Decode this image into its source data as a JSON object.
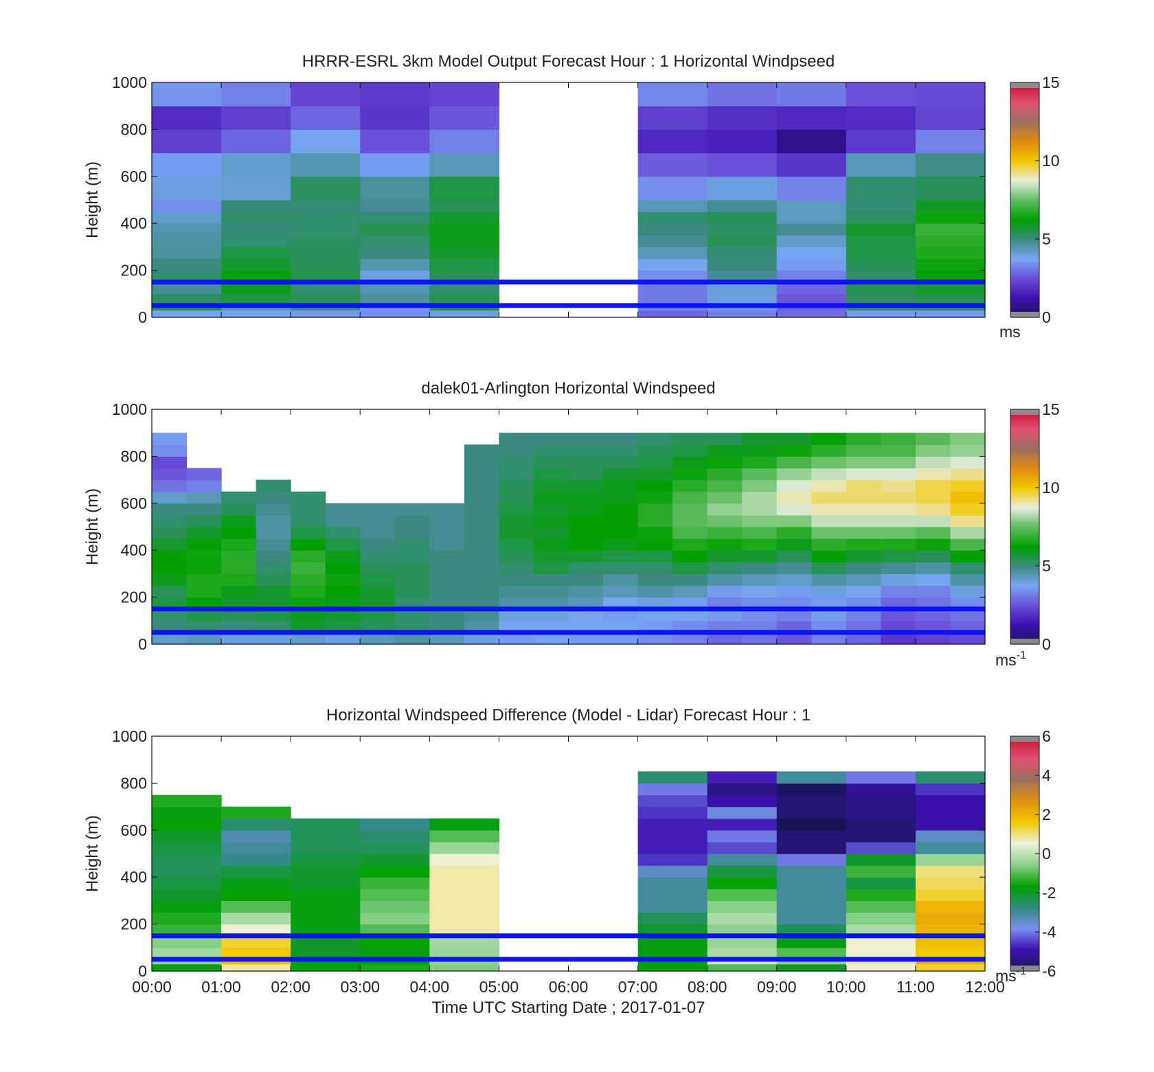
{
  "figure": {
    "xlabel": "Time UTC  Starting Date ; 2017-01-07",
    "xticks": [
      "00:00",
      "01:00",
      "02:00",
      "03:00",
      "04:00",
      "05:00",
      "06:00",
      "07:00",
      "08:00",
      "09:00",
      "10:00",
      "11:00",
      "12:00"
    ]
  },
  "colormap": {
    "windspeed": [
      "#161650",
      "#3c10b0",
      "#6a4fd8",
      "#78a6f5",
      "#3a8a80",
      "#00a000",
      "#60bc60",
      "#e8eee0",
      "#f2c800",
      "#e08a10",
      "#9c7060",
      "#e05070",
      "#c81030"
    ],
    "difference": [
      "#161650",
      "#3c10b0",
      "#7a8ef0",
      "#2f8a7e",
      "#00a000",
      "#8cd08c",
      "#eef2dc",
      "#f2c800",
      "#e09010",
      "#9c7060",
      "#e05070",
      "#c81030"
    ],
    "clip_color": "#8c8c8c",
    "reference_line_color": "#0a14f0"
  },
  "chart_data": [
    {
      "type": "heatmap",
      "title": "HRRR-ESRL 3km Model Output   Forecast Hour : 1 Horizontal Windpseed",
      "ylabel": "Height (m)",
      "xlim": [
        0,
        12
      ],
      "ylim": [
        0,
        1000
      ],
      "yticks": [
        "0",
        "200",
        "400",
        "600",
        "800",
        "1000"
      ],
      "colorbar": {
        "range": [
          0,
          15
        ],
        "ticks": [
          "0",
          "5",
          "10",
          "15"
        ],
        "unit": "ms"
      },
      "hline_heights_m": [
        50,
        150
      ],
      "x_bins_hours": [
        0,
        1,
        2,
        3,
        4,
        5,
        6,
        7,
        8,
        9,
        10,
        11,
        12
      ],
      "y_bins_m": [
        0,
        30,
        60,
        100,
        150,
        200,
        250,
        300,
        350,
        400,
        450,
        500,
        600,
        700,
        800,
        900,
        1000
      ],
      "values": [
        [
          3.8,
          5.4,
          5.3,
          4.8,
          5.2,
          5.0,
          4.7,
          4.6,
          4.5,
          4.2,
          3.4,
          4.0,
          3.6,
          2.2,
          1.8,
          3.5
        ],
        [
          3.8,
          4.4,
          5.6,
          6.0,
          6.3,
          5.8,
          5.6,
          5.2,
          5.1,
          5.2,
          5.1,
          4.1,
          4.2,
          2.8,
          2.2,
          3.2
        ],
        [
          3.6,
          4.9,
          5.4,
          5.2,
          5.5,
          5.4,
          5.4,
          5.3,
          5.2,
          5.2,
          5.1,
          5.3,
          4.5,
          3.8,
          2.8,
          2.3
        ],
        [
          3.4,
          3.6,
          4.7,
          4.5,
          4.0,
          4.5,
          5.0,
          5.2,
          5.5,
          5.1,
          4.8,
          4.7,
          3.6,
          2.5,
          2.0,
          2.1
        ],
        [
          4.0,
          5.4,
          5.5,
          5.2,
          5.4,
          5.6,
          5.8,
          6.0,
          6.0,
          5.8,
          5.4,
          5.6,
          4.4,
          3.2,
          2.6,
          2.3
        ],
        null,
        null,
        [
          2.8,
          3.2,
          3.1,
          3.1,
          3.4,
          3.8,
          4.4,
          4.8,
          5.0,
          5.2,
          4.4,
          3.4,
          2.7,
          1.7,
          2.2,
          3.3
        ],
        [
          3.2,
          3.5,
          4.0,
          4.1,
          4.8,
          5.0,
          5.1,
          5.4,
          5.3,
          5.4,
          4.8,
          4.0,
          2.5,
          1.6,
          1.9,
          3.0
        ],
        [
          2.9,
          2.7,
          2.6,
          2.8,
          3.2,
          3.6,
          3.8,
          4.2,
          4.8,
          4.3,
          4.3,
          3.2,
          2.0,
          0.8,
          1.7,
          3.1
        ],
        [
          3.6,
          5.2,
          5.3,
          5.5,
          5.2,
          5.4,
          5.6,
          5.6,
          5.8,
          5.3,
          5.1,
          5.2,
          4.4,
          2.1,
          1.8,
          2.5
        ],
        [
          3.6,
          5.2,
          5.5,
          5.8,
          6.2,
          6.4,
          6.6,
          6.8,
          7.0,
          6.4,
          5.9,
          5.4,
          4.9,
          3.2,
          2.3,
          2.4
        ]
      ]
    },
    {
      "type": "heatmap",
      "title": "dalek01-Arlington  Horizontal Windspeed",
      "ylabel": "Height (m)",
      "xlim": [
        0,
        12
      ],
      "ylim": [
        0,
        1000
      ],
      "yticks": [
        "0",
        "200",
        "400",
        "600",
        "800",
        "1000"
      ],
      "colorbar": {
        "range": [
          0,
          15
        ],
        "ticks": [
          "0",
          "5",
          "10",
          "15"
        ],
        "unit": "ms",
        "unit_superscript": "-1"
      },
      "hline_heights_m": [
        50,
        150
      ],
      "x_bins_hours": [
        0,
        0.5,
        1,
        1.5,
        2,
        2.5,
        3,
        3.5,
        4,
        4.5,
        5,
        5.5,
        6,
        6.5,
        7,
        7.5,
        8,
        8.5,
        9,
        9.5,
        10,
        10.5,
        11,
        11.5,
        12
      ],
      "y_bins_m": [
        0,
        50,
        100,
        150,
        200,
        250,
        300,
        350,
        400,
        450,
        500,
        550,
        600,
        650,
        700,
        750,
        800,
        850,
        900
      ],
      "values": [
        [
          4.2,
          5.0,
          5.2,
          5.6,
          5.4,
          6.0,
          6.2,
          6.2,
          5.8,
          5.4,
          5.2,
          5.0,
          4.2,
          3.0,
          2.6,
          2.4,
          3.4,
          3.6
        ],
        [
          4.4,
          5.2,
          5.6,
          6.2,
          6.6,
          6.6,
          6.4,
          6.4,
          6.2,
          5.8,
          5.4,
          5.0,
          4.4,
          3.2,
          2.8,
          null,
          null,
          null
        ],
        [
          4.0,
          5.0,
          5.4,
          5.8,
          6.0,
          6.6,
          6.8,
          6.8,
          6.6,
          6.2,
          6.0,
          5.4,
          5.2,
          null,
          null,
          null,
          null,
          null
        ],
        [
          4.0,
          5.2,
          5.6,
          5.8,
          5.8,
          5.4,
          5.2,
          5.0,
          4.8,
          4.6,
          4.6,
          4.8,
          5.0,
          5.2,
          null,
          null,
          null,
          null
        ],
        [
          4.2,
          5.8,
          6.0,
          6.4,
          6.6,
          6.8,
          7.0,
          6.8,
          6.2,
          5.6,
          5.2,
          5.2,
          5.2,
          null,
          null,
          null,
          null,
          null
        ],
        [
          4.0,
          5.6,
          5.8,
          6.0,
          6.2,
          6.4,
          6.2,
          6.0,
          5.6,
          5.2,
          4.8,
          4.8,
          null,
          null,
          null,
          null,
          null,
          null
        ],
        [
          4.4,
          5.4,
          5.6,
          5.8,
          5.8,
          5.6,
          5.4,
          5.2,
          5.0,
          4.8,
          4.8,
          4.8,
          null,
          null,
          null,
          null,
          null,
          null
        ],
        [
          4.6,
          5.2,
          5.2,
          5.2,
          5.4,
          5.4,
          5.4,
          5.2,
          5.2,
          5.0,
          5.0,
          4.8,
          null,
          null,
          null,
          null,
          null,
          null
        ],
        [
          4.4,
          5.0,
          5.0,
          5.0,
          5.0,
          5.0,
          5.0,
          5.0,
          4.8,
          4.8,
          4.8,
          4.8,
          null,
          null,
          null,
          null,
          null,
          null
        ],
        [
          4.0,
          4.6,
          4.8,
          5.0,
          5.0,
          5.0,
          5.0,
          5.0,
          5.0,
          5.0,
          5.0,
          5.0,
          5.0,
          5.0,
          5.0,
          5.0,
          5.0,
          null
        ],
        [
          3.6,
          3.8,
          4.0,
          4.6,
          4.8,
          5.0,
          5.2,
          5.4,
          5.6,
          5.8,
          5.8,
          5.6,
          5.4,
          5.4,
          5.2,
          5.2,
          5.0,
          5.0
        ],
        [
          3.8,
          3.8,
          4.0,
          4.6,
          4.8,
          5.0,
          5.6,
          5.8,
          6.0,
          5.8,
          6.0,
          5.8,
          6.0,
          5.8,
          5.6,
          5.4,
          5.2,
          5.0
        ],
        [
          3.6,
          3.8,
          3.8,
          4.4,
          4.6,
          5.0,
          5.2,
          5.8,
          6.2,
          6.2,
          6.2,
          6.0,
          6.0,
          5.8,
          5.4,
          5.4,
          5.2,
          5.0
        ],
        [
          3.6,
          3.8,
          3.6,
          3.8,
          4.4,
          4.6,
          5.2,
          5.6,
          6.0,
          6.2,
          6.2,
          6.2,
          6.0,
          6.0,
          5.8,
          5.4,
          5.2,
          5.0
        ],
        [
          3.4,
          3.6,
          3.8,
          4.0,
          4.6,
          5.0,
          5.2,
          5.6,
          6.2,
          6.4,
          6.8,
          6.8,
          6.4,
          6.2,
          5.8,
          5.6,
          5.4,
          5.2
        ],
        [
          3.2,
          3.4,
          3.8,
          3.6,
          4.4,
          5.0,
          5.6,
          6.2,
          6.6,
          7.2,
          7.4,
          7.4,
          7.2,
          6.8,
          6.4,
          6.0,
          5.6,
          5.4
        ],
        [
          2.8,
          3.2,
          3.6,
          3.2,
          3.6,
          4.6,
          5.2,
          5.8,
          6.4,
          7.0,
          7.6,
          8.0,
          7.6,
          7.2,
          6.8,
          6.4,
          6.0,
          5.4
        ],
        [
          3.0,
          3.2,
          3.4,
          3.4,
          3.8,
          4.4,
          5.0,
          5.8,
          6.6,
          7.2,
          7.8,
          8.2,
          8.2,
          7.8,
          7.4,
          6.6,
          6.0,
          5.8
        ],
        [
          2.6,
          2.8,
          3.2,
          3.4,
          3.6,
          4.2,
          4.8,
          5.4,
          6.0,
          6.8,
          7.8,
          8.6,
          9.0,
          8.6,
          8.0,
          7.2,
          6.4,
          5.8
        ],
        [
          3.2,
          3.4,
          3.6,
          3.6,
          4.0,
          4.6,
          5.4,
          6.2,
          6.8,
          7.6,
          8.4,
          9.0,
          9.4,
          9.0,
          8.4,
          7.6,
          6.8,
          6.2
        ],
        [
          2.8,
          3.0,
          3.2,
          3.4,
          3.8,
          4.4,
          5.0,
          5.8,
          6.6,
          7.6,
          8.4,
          9.0,
          9.4,
          9.4,
          8.6,
          7.8,
          7.2,
          6.8
        ],
        [
          2.0,
          2.4,
          2.6,
          2.8,
          3.2,
          4.0,
          4.8,
          5.6,
          6.6,
          7.6,
          8.4,
          9.0,
          9.4,
          9.2,
          8.6,
          7.8,
          7.2,
          7.0
        ],
        [
          2.2,
          2.6,
          2.8,
          3.0,
          3.2,
          3.8,
          4.6,
          5.4,
          6.4,
          7.4,
          8.4,
          9.2,
          9.6,
          9.6,
          9.0,
          8.4,
          7.8,
          7.4
        ],
        [
          2.4,
          2.8,
          3.0,
          3.4,
          4.0,
          4.6,
          5.2,
          6.2,
          7.2,
          8.2,
          9.2,
          9.8,
          10.2,
          9.8,
          9.2,
          8.6,
          8.0,
          7.8
        ]
      ]
    },
    {
      "type": "heatmap",
      "title": "Horizontal Windspeed Difference (Model - Lidar) Forecast Hour : 1",
      "ylabel": "Height (m)",
      "xlim": [
        0,
        12
      ],
      "ylim": [
        0,
        1000
      ],
      "yticks": [
        "0",
        "200",
        "400",
        "600",
        "800",
        "1000"
      ],
      "colorbar": {
        "range": [
          -6,
          6
        ],
        "ticks": [
          "-6",
          "-4",
          "-2",
          "0",
          "2",
          "4",
          "6"
        ],
        "unit": "ms",
        "unit_superscript": "-1"
      },
      "hline_heights_m": [
        50,
        150
      ],
      "x_bins_hours": [
        0,
        1,
        2,
        3,
        4,
        5,
        6,
        7,
        8,
        9,
        10,
        11,
        12
      ],
      "y_bins_m": [
        0,
        30,
        60,
        100,
        150,
        200,
        250,
        300,
        350,
        400,
        450,
        500,
        550,
        600,
        650,
        700,
        750,
        800,
        850
      ],
      "values": [
        [
          -1.8,
          -0.5,
          -0.3,
          -0.6,
          -1.2,
          -1.4,
          -1.8,
          -2.0,
          -2.2,
          -2.4,
          -2.4,
          -2.2,
          -2.0,
          -1.6,
          -1.8,
          -1.4,
          null,
          null
        ],
        [
          0.8,
          1.8,
          1.6,
          1.4,
          0.6,
          -0.2,
          -1.0,
          -1.6,
          -1.8,
          -2.2,
          -2.8,
          -3.0,
          -3.2,
          -2.6,
          -1.4,
          null,
          null,
          null
        ],
        [
          -1.6,
          -1.8,
          -2.0,
          -2.0,
          -1.8,
          -1.8,
          -1.8,
          -1.8,
          -2.0,
          -2.0,
          -2.2,
          -2.4,
          -2.4,
          -2.4,
          null,
          null,
          null,
          null
        ],
        [
          -1.4,
          -1.8,
          -1.8,
          -1.6,
          -1.0,
          -0.6,
          -0.8,
          -1.0,
          -1.2,
          -1.6,
          -2.0,
          -2.4,
          -2.6,
          -2.8,
          null,
          null,
          null,
          null
        ],
        [
          -0.6,
          -0.5,
          -0.4,
          -0.3,
          0.8,
          0.8,
          0.8,
          0.8,
          0.8,
          0.8,
          0.6,
          -0.4,
          -1.0,
          -1.8,
          null,
          null,
          null,
          null
        ],
        null,
        null,
        [
          -1.8,
          -1.8,
          -1.8,
          -1.8,
          -2.0,
          -2.4,
          -3.0,
          -3.0,
          -3.0,
          -3.4,
          -4.6,
          -4.8,
          -4.8,
          -4.8,
          -4.6,
          -4.4,
          -4.0,
          -2.6
        ],
        [
          -1.0,
          0.2,
          -0.2,
          -0.4,
          -0.5,
          -0.2,
          -0.6,
          -1.0,
          -1.6,
          -2.2,
          -3.0,
          -4.4,
          -4.0,
          -4.8,
          -3.6,
          -5.0,
          -5.4,
          -4.8
        ],
        [
          -2.0,
          -0.5,
          -1.0,
          -1.8,
          -2.4,
          -3.0,
          -3.0,
          -3.0,
          -3.0,
          -3.0,
          -4.0,
          -5.6,
          -5.6,
          -6.0,
          -5.6,
          -5.6,
          -5.8,
          -3.0
        ],
        [
          0.6,
          0.8,
          0.6,
          0.6,
          -0.2,
          -0.6,
          -1.0,
          -1.4,
          -2.2,
          -1.2,
          -2.0,
          -4.4,
          -5.6,
          -5.6,
          -5.4,
          -5.4,
          -5.2,
          -4.0
        ],
        [
          1.4,
          2.0,
          1.6,
          1.8,
          2.0,
          2.2,
          2.0,
          1.4,
          1.2,
          1.0,
          -0.4,
          -3.0,
          -3.4,
          -5.0,
          -5.0,
          -5.0,
          -4.6,
          -2.6
        ]
      ]
    }
  ]
}
